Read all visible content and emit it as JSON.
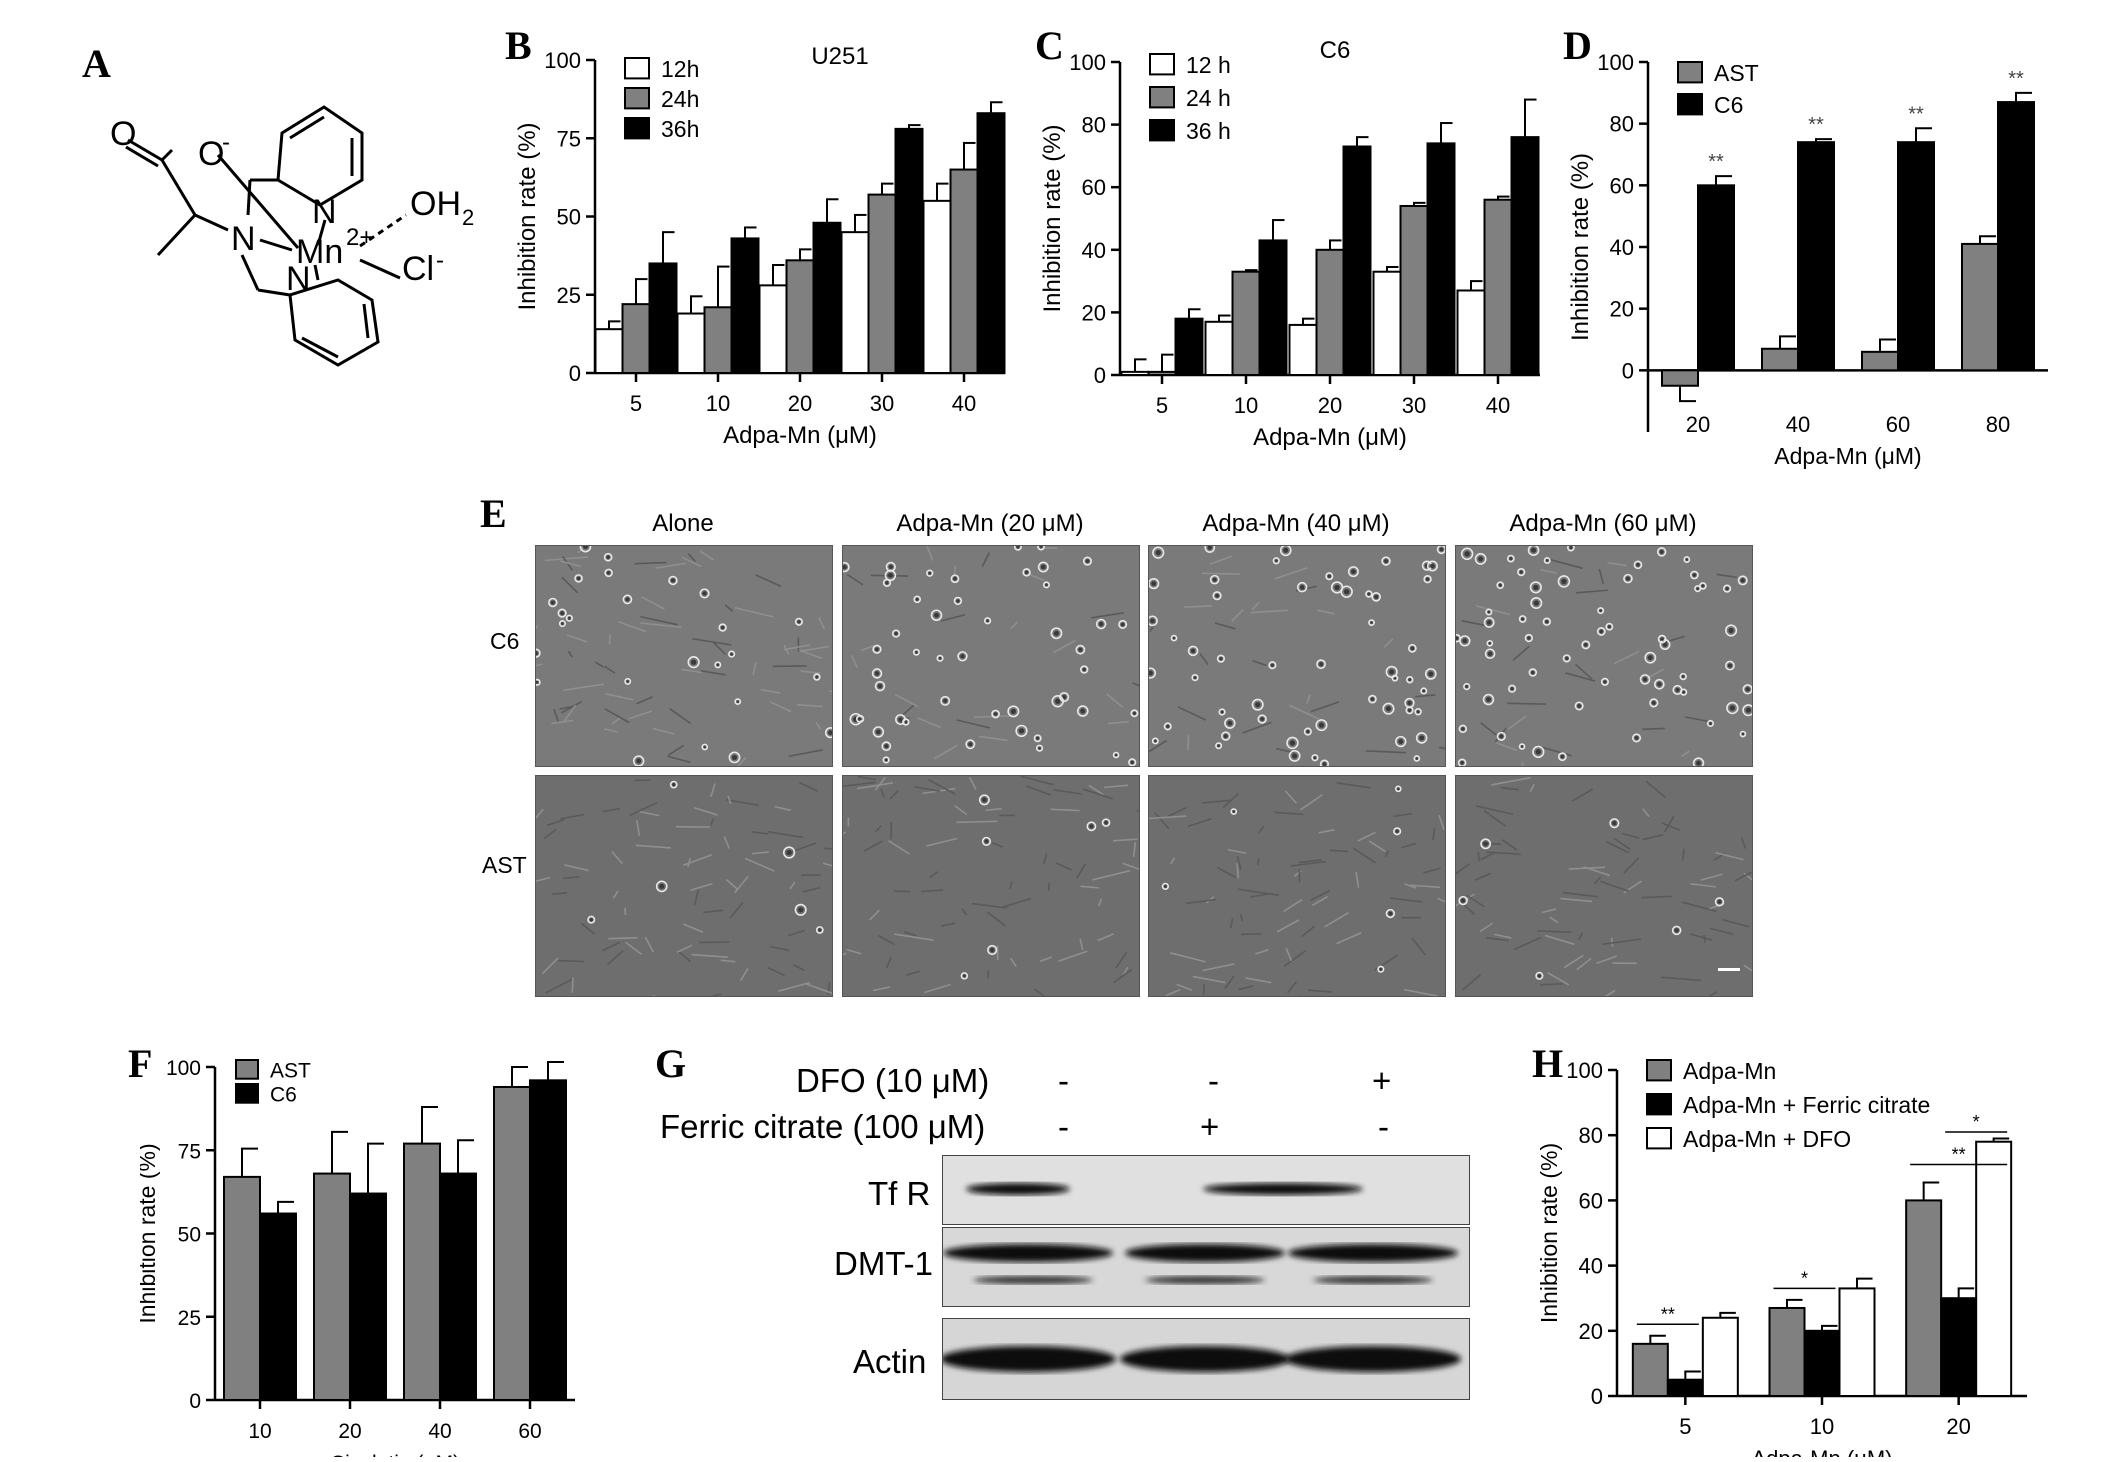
{
  "panel_labels": {
    "a": "A",
    "b": "B",
    "c": "C",
    "d": "D",
    "e": "E",
    "f": "F",
    "g": "G",
    "h": "H"
  },
  "structure": {
    "text": {
      "carboxyl_o": "O",
      "carboxylate_o": "O",
      "o_charge": "-",
      "n_amine": "N",
      "n_py1": "N",
      "n_py2": "N",
      "mn": "Mn",
      "mn_charge": "2+",
      "oh2": "OH",
      "oh2_sub": "2",
      "cl": "Cl",
      "cl_charge": "-"
    }
  },
  "chart_data": [
    {
      "id": "B",
      "type": "bar",
      "title": "U251",
      "xlabel": "Adpa-Mn (μM)",
      "ylabel": "Inhibition rate (%)",
      "categories": [
        "5",
        "10",
        "20",
        "30",
        "40"
      ],
      "ylim": [
        0,
        100
      ],
      "yticks": [
        0,
        25,
        50,
        75,
        100
      ],
      "legend_position": "top-left",
      "series": [
        {
          "name": "12h",
          "color": "#ffffff",
          "values": [
            14,
            19,
            28,
            45,
            55
          ],
          "errors": [
            2.5,
            5.5,
            6.5,
            5.5,
            5.5
          ]
        },
        {
          "name": "24h",
          "color": "#808080",
          "values": [
            22,
            21,
            36,
            57,
            65
          ],
          "errors": [
            8,
            13,
            3.5,
            3.5,
            8.5
          ]
        },
        {
          "name": "36h",
          "color": "#000000",
          "values": [
            35,
            43,
            48,
            78,
            83
          ],
          "errors": [
            10,
            3.5,
            7.5,
            1.2,
            3.5
          ]
        }
      ]
    },
    {
      "id": "C",
      "type": "bar",
      "title": "C6",
      "xlabel": "Adpa-Mn (μM)",
      "ylabel": "Inhibition rate (%)",
      "categories": [
        "5",
        "10",
        "20",
        "30",
        "40"
      ],
      "ylim": [
        0,
        100
      ],
      "yticks": [
        0,
        20,
        40,
        60,
        80,
        100
      ],
      "legend_position": "top-left",
      "series": [
        {
          "name": "12 h",
          "color": "#ffffff",
          "values": [
            1,
            17,
            16,
            33,
            27
          ],
          "errors": [
            4,
            2,
            2,
            1.5,
            3
          ]
        },
        {
          "name": "24 h",
          "color": "#808080",
          "values": [
            1,
            33,
            40,
            54,
            56
          ],
          "errors": [
            5.5,
            0.5,
            3,
            1,
            1
          ]
        },
        {
          "name": "36 h",
          "color": "#000000",
          "values": [
            18,
            43,
            73,
            74,
            76
          ],
          "errors": [
            3,
            6.5,
            3,
            6.5,
            12
          ]
        }
      ]
    },
    {
      "id": "D",
      "type": "bar",
      "title": "",
      "xlabel": "Adpa-Mn (μM)",
      "ylabel": "Inhibition rate (%)",
      "categories": [
        "20",
        "40",
        "60",
        "80"
      ],
      "ylim": [
        -20,
        100
      ],
      "yticks": [
        0,
        20,
        40,
        60,
        80,
        100
      ],
      "legend_position": "top-left",
      "series": [
        {
          "name": "AST",
          "color": "#808080",
          "values": [
            -5,
            7,
            6,
            41
          ],
          "errors": [
            5,
            4,
            4,
            2.5
          ],
          "sig": [
            "",
            "",
            "",
            ""
          ]
        },
        {
          "name": "C6",
          "color": "#000000",
          "values": [
            60,
            74,
            74,
            87
          ],
          "errors": [
            3,
            1,
            4.5,
            3
          ],
          "sig": [
            "**",
            "**",
            "**",
            "**"
          ]
        }
      ]
    },
    {
      "id": "F",
      "type": "bar",
      "title": "",
      "xlabel": "Cisplatin (μM)",
      "ylabel": "Inhibition rate (%)",
      "categories": [
        "10",
        "20",
        "40",
        "60"
      ],
      "ylim": [
        0,
        100
      ],
      "yticks": [
        0,
        25,
        50,
        75,
        100
      ],
      "legend_position": "top-left",
      "series": [
        {
          "name": "AST",
          "color": "#808080",
          "values": [
            67,
            68,
            77,
            94
          ],
          "errors": [
            8.5,
            12.5,
            11,
            6
          ]
        },
        {
          "name": "C6",
          "color": "#000000",
          "values": [
            56,
            62,
            68,
            96
          ],
          "errors": [
            3.5,
            15,
            10,
            5.5
          ]
        }
      ]
    },
    {
      "id": "H",
      "type": "bar",
      "title": "",
      "xlabel": "Adpa-Mn (μM)",
      "ylabel": "Inhibition rate (%)",
      "categories": [
        "5",
        "10",
        "20"
      ],
      "ylim": [
        0,
        100
      ],
      "yticks": [
        0,
        20,
        40,
        60,
        80,
        100
      ],
      "legend_position": "top-left",
      "series": [
        {
          "name": "Adpa-Mn",
          "color": "#808080",
          "values": [
            16,
            27,
            60
          ],
          "errors": [
            2.5,
            2.5,
            5.5
          ]
        },
        {
          "name": "Adpa-Mn + Ferric citrate",
          "color": "#000000",
          "values": [
            5,
            20,
            30
          ],
          "errors": [
            2.5,
            1.5,
            3
          ]
        },
        {
          "name": "Adpa-Mn + DFO",
          "color": "#ffffff",
          "values": [
            24,
            33,
            78
          ],
          "errors": [
            1.5,
            3,
            1
          ]
        }
      ],
      "annotations": [
        {
          "text": "**",
          "group": 0,
          "from": 0,
          "to": 1,
          "y": 22
        },
        {
          "text": "*",
          "group": 1,
          "from": 0,
          "to": 1,
          "y": 33
        },
        {
          "text": "**",
          "group": 2,
          "from": 0,
          "to": 2,
          "y": 71
        },
        {
          "text": "*",
          "group": 2,
          "from": 1,
          "to": 2,
          "y": 81
        }
      ]
    }
  ],
  "micrographs": {
    "columns": [
      "Alone",
      "Adpa-Mn (20 μM)",
      "Adpa-Mn (40 μM)",
      "Adpa-Mn (60 μM)"
    ],
    "rows": [
      "C6",
      "AST"
    ]
  },
  "blot": {
    "conditions": [
      {
        "label": "DFO (10 μM)",
        "values": [
          "-",
          "-",
          "+"
        ]
      },
      {
        "label": "Ferric citrate (100 μM)",
        "values": [
          "-",
          "+",
          "-"
        ]
      }
    ],
    "bands": [
      "Tf R",
      "DMT-1",
      "Actin"
    ]
  }
}
